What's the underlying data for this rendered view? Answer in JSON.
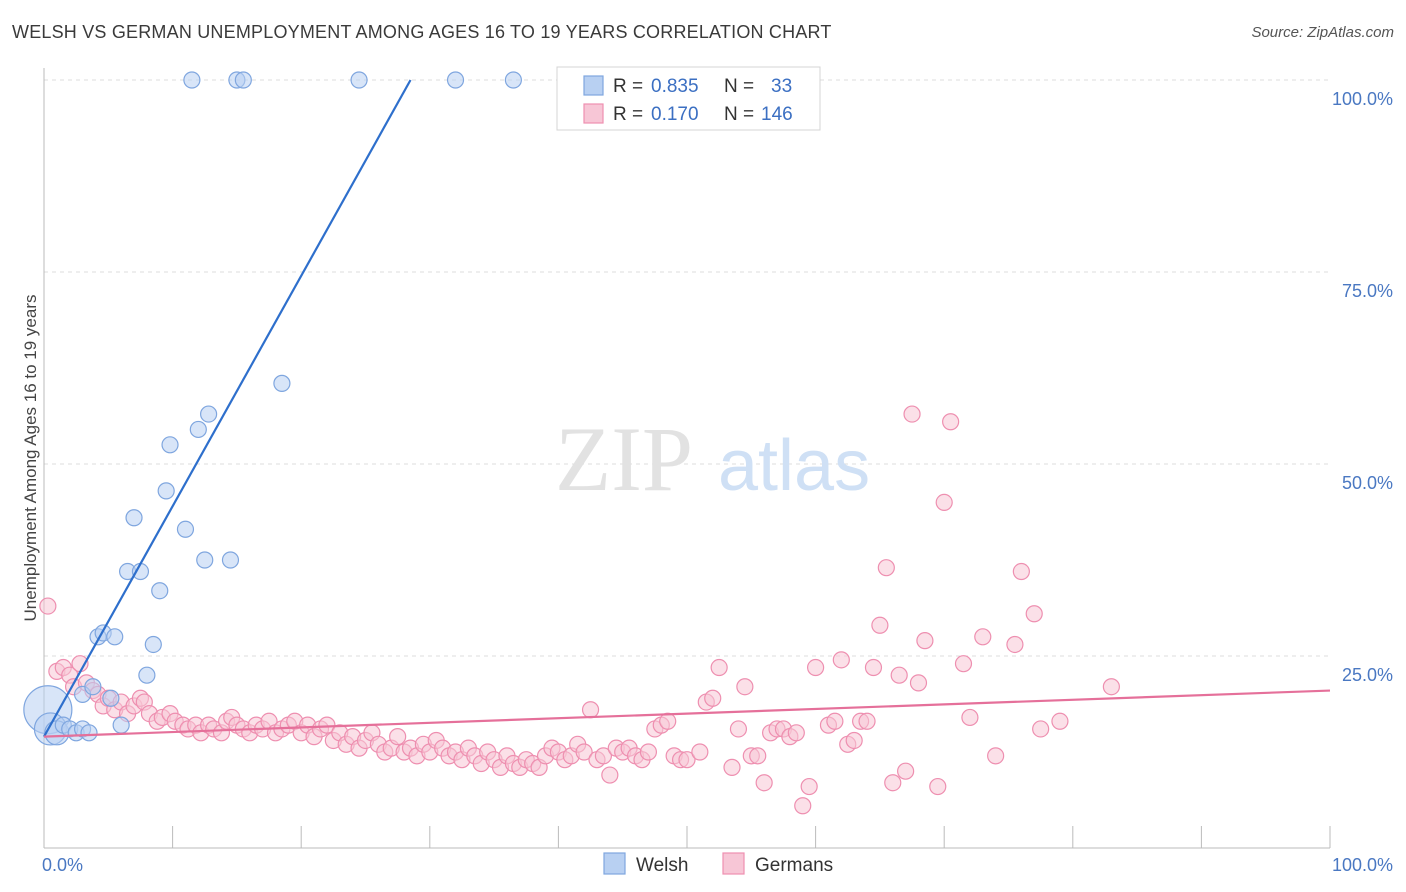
{
  "title": "WELSH VS GERMAN UNEMPLOYMENT AMONG AGES 16 TO 19 YEARS CORRELATION CHART",
  "source": "Source: ZipAtlas.com",
  "watermark": {
    "zip": "ZIP",
    "atlas": "atlas"
  },
  "colors": {
    "welsh_fill": "#b8d0f2",
    "welsh_stroke": "#7fa6df",
    "welsh_line": "#2e6fcc",
    "german_fill": "#f7c6d6",
    "german_stroke": "#ee8fb0",
    "german_line": "#e5709a",
    "tick_text": "#4a78c2",
    "grid": "#dddddd"
  },
  "legend": {
    "welsh": {
      "r_label": "R =",
      "r_value": "0.835",
      "n_label": "N =",
      "n_value": "33"
    },
    "germans": {
      "r_label": "R =",
      "r_value": "0.170",
      "n_label": "N =",
      "n_value": "146"
    }
  },
  "bottom_legend": {
    "welsh": "Welsh",
    "germans": "Germans"
  },
  "chart_data": {
    "type": "scatter",
    "title": "WELSH VS GERMAN UNEMPLOYMENT AMONG AGES 16 TO 19 YEARS CORRELATION CHART",
    "xlabel": "",
    "ylabel": "Unemployment Among Ages 16 to 19 years",
    "xlim": [
      0,
      100
    ],
    "ylim": [
      0,
      100
    ],
    "x_ticks": [
      {
        "value": 0,
        "label": "0.0%"
      },
      {
        "value": 100,
        "label": "100.0%"
      }
    ],
    "y_ticks": [
      {
        "value": 25,
        "label": "25.0%"
      },
      {
        "value": 50,
        "label": "50.0%"
      },
      {
        "value": 75,
        "label": "75.0%"
      },
      {
        "value": 100,
        "label": "100.0%"
      }
    ],
    "grid": true,
    "legend_position": "top-center",
    "series": [
      {
        "name": "Welsh",
        "R": 0.835,
        "N": 33,
        "trendline": {
          "x": [
            0.0,
            28.5
          ],
          "y": [
            14.5,
            100.0
          ]
        },
        "points": [
          [
            0.3,
            18.0,
            3
          ],
          [
            0.5,
            15.5,
            2
          ],
          [
            1.0,
            15.0,
            1.5
          ],
          [
            1.5,
            16.0,
            1
          ],
          [
            2.0,
            15.5,
            1
          ],
          [
            2.5,
            15.0,
            1
          ],
          [
            3.0,
            15.5,
            1
          ],
          [
            3.5,
            15.0,
            1
          ],
          [
            3.0,
            20.0,
            1
          ],
          [
            3.8,
            21.0,
            1
          ],
          [
            4.2,
            27.5,
            1
          ],
          [
            4.6,
            28.0,
            1
          ],
          [
            5.5,
            27.5,
            1
          ],
          [
            5.2,
            19.5,
            1
          ],
          [
            6.0,
            16.0,
            1
          ],
          [
            6.5,
            36.0,
            1
          ],
          [
            7.0,
            43.0,
            1
          ],
          [
            7.5,
            36.0,
            1
          ],
          [
            8.0,
            22.5,
            1
          ],
          [
            8.5,
            26.5,
            1
          ],
          [
            9.0,
            33.5,
            1
          ],
          [
            9.5,
            46.5,
            1
          ],
          [
            9.8,
            52.5,
            1
          ],
          [
            11.0,
            41.5,
            1
          ],
          [
            11.5,
            100.0,
            1
          ],
          [
            12.0,
            54.5,
            1
          ],
          [
            12.5,
            37.5,
            1
          ],
          [
            12.8,
            56.5,
            1
          ],
          [
            14.5,
            37.5,
            1
          ],
          [
            15.0,
            100.0,
            1
          ],
          [
            15.5,
            100.0,
            1
          ],
          [
            18.5,
            60.5,
            1
          ],
          [
            24.5,
            100.0,
            1
          ],
          [
            32.0,
            100.0,
            1
          ],
          [
            36.5,
            100.0,
            1
          ]
        ]
      },
      {
        "name": "Germans",
        "R": 0.17,
        "N": 146,
        "trendline": {
          "x": [
            0.0,
            100.0
          ],
          "y": [
            14.5,
            20.5
          ]
        },
        "points": [
          [
            0.3,
            31.5,
            1
          ],
          [
            1.0,
            23.0,
            1
          ],
          [
            1.5,
            23.5,
            1
          ],
          [
            2.0,
            22.5,
            1
          ],
          [
            2.3,
            21.0,
            1
          ],
          [
            2.8,
            24.0,
            1
          ],
          [
            3.3,
            21.5,
            1
          ],
          [
            3.8,
            20.5,
            1
          ],
          [
            4.2,
            20.0,
            1
          ],
          [
            4.6,
            18.5,
            1
          ],
          [
            5.0,
            19.5,
            1
          ],
          [
            5.5,
            18.0,
            1
          ],
          [
            6.0,
            19.0,
            1
          ],
          [
            6.5,
            17.5,
            1
          ],
          [
            7.0,
            18.5,
            1
          ],
          [
            7.5,
            19.5,
            1
          ],
          [
            7.8,
            19.0,
            1
          ],
          [
            8.2,
            17.5,
            1
          ],
          [
            8.8,
            16.5,
            1
          ],
          [
            9.2,
            17.0,
            1
          ],
          [
            9.8,
            17.5,
            1
          ],
          [
            10.2,
            16.5,
            1
          ],
          [
            10.8,
            16.0,
            1
          ],
          [
            11.2,
            15.5,
            1
          ],
          [
            11.8,
            16.0,
            1
          ],
          [
            12.2,
            15.0,
            1
          ],
          [
            12.8,
            16.0,
            1
          ],
          [
            13.2,
            15.5,
            1
          ],
          [
            13.8,
            15.0,
            1
          ],
          [
            14.2,
            16.5,
            1
          ],
          [
            14.6,
            17.0,
            1
          ],
          [
            15.0,
            16.0,
            1
          ],
          [
            15.5,
            15.5,
            1
          ],
          [
            16.0,
            15.0,
            1
          ],
          [
            16.5,
            16.0,
            1
          ],
          [
            17.0,
            15.5,
            1
          ],
          [
            17.5,
            16.5,
            1
          ],
          [
            18.0,
            15.0,
            1
          ],
          [
            18.5,
            15.5,
            1
          ],
          [
            19.0,
            16.0,
            1
          ],
          [
            19.5,
            16.5,
            1
          ],
          [
            20.0,
            15.0,
            1
          ],
          [
            20.5,
            16.0,
            1
          ],
          [
            21.0,
            14.5,
            1
          ],
          [
            21.5,
            15.5,
            1
          ],
          [
            22.0,
            16.0,
            1
          ],
          [
            22.5,
            14.0,
            1
          ],
          [
            23.0,
            15.0,
            1
          ],
          [
            23.5,
            13.5,
            1
          ],
          [
            24.0,
            14.5,
            1
          ],
          [
            24.5,
            13.0,
            1
          ],
          [
            25.0,
            14.0,
            1
          ],
          [
            25.5,
            15.0,
            1
          ],
          [
            26.0,
            13.5,
            1
          ],
          [
            26.5,
            12.5,
            1
          ],
          [
            27.0,
            13.0,
            1
          ],
          [
            27.5,
            14.5,
            1
          ],
          [
            28.0,
            12.5,
            1
          ],
          [
            28.5,
            13.0,
            1
          ],
          [
            29.0,
            12.0,
            1
          ],
          [
            29.5,
            13.5,
            1
          ],
          [
            30.0,
            12.5,
            1
          ],
          [
            30.5,
            14.0,
            1
          ],
          [
            31.0,
            13.0,
            1
          ],
          [
            31.5,
            12.0,
            1
          ],
          [
            32.0,
            12.5,
            1
          ],
          [
            32.5,
            11.5,
            1
          ],
          [
            33.0,
            13.0,
            1
          ],
          [
            33.5,
            12.0,
            1
          ],
          [
            34.0,
            11.0,
            1
          ],
          [
            34.5,
            12.5,
            1
          ],
          [
            35.0,
            11.5,
            1
          ],
          [
            35.5,
            10.5,
            1
          ],
          [
            36.0,
            12.0,
            1
          ],
          [
            36.5,
            11.0,
            1
          ],
          [
            37.0,
            10.5,
            1
          ],
          [
            37.5,
            11.5,
            1
          ],
          [
            38.0,
            11.0,
            1
          ],
          [
            38.5,
            10.5,
            1
          ],
          [
            39.0,
            12.0,
            1
          ],
          [
            39.5,
            13.0,
            1
          ],
          [
            40.0,
            12.5,
            1
          ],
          [
            40.5,
            11.5,
            1
          ],
          [
            41.0,
            12.0,
            1
          ],
          [
            41.5,
            13.5,
            1
          ],
          [
            42.0,
            12.5,
            1
          ],
          [
            42.5,
            18.0,
            1
          ],
          [
            43.0,
            11.5,
            1
          ],
          [
            43.5,
            12.0,
            1
          ],
          [
            44.0,
            9.5,
            1
          ],
          [
            44.5,
            13.0,
            1
          ],
          [
            45.0,
            12.5,
            1
          ],
          [
            45.5,
            13.0,
            1
          ],
          [
            46.0,
            12.0,
            1
          ],
          [
            46.5,
            11.5,
            1
          ],
          [
            47.0,
            12.5,
            1
          ],
          [
            47.5,
            15.5,
            1
          ],
          [
            48.0,
            16.0,
            1
          ],
          [
            48.5,
            16.5,
            1
          ],
          [
            49.0,
            12.0,
            1
          ],
          [
            49.5,
            11.5,
            1
          ],
          [
            50.0,
            11.5,
            1
          ],
          [
            51.0,
            12.5,
            1
          ],
          [
            51.5,
            19.0,
            1
          ],
          [
            52.0,
            19.5,
            1
          ],
          [
            52.5,
            23.5,
            1
          ],
          [
            53.5,
            10.5,
            1
          ],
          [
            54.0,
            15.5,
            1
          ],
          [
            54.5,
            21.0,
            1
          ],
          [
            55.0,
            12.0,
            1
          ],
          [
            55.5,
            12.0,
            1
          ],
          [
            56.0,
            8.5,
            1
          ],
          [
            56.5,
            15.0,
            1
          ],
          [
            57.0,
            15.5,
            1
          ],
          [
            57.5,
            15.5,
            1
          ],
          [
            58.0,
            14.5,
            1
          ],
          [
            58.5,
            15.0,
            1
          ],
          [
            59.0,
            5.5,
            1
          ],
          [
            59.5,
            8.0,
            1
          ],
          [
            60.0,
            23.5,
            1
          ],
          [
            61.0,
            16.0,
            1
          ],
          [
            61.5,
            16.5,
            1
          ],
          [
            62.0,
            24.5,
            1
          ],
          [
            62.5,
            13.5,
            1
          ],
          [
            63.0,
            14.0,
            1
          ],
          [
            63.5,
            16.5,
            1
          ],
          [
            64.0,
            16.5,
            1
          ],
          [
            64.5,
            23.5,
            1
          ],
          [
            65.0,
            29.0,
            1
          ],
          [
            65.5,
            36.5,
            1
          ],
          [
            66.0,
            8.5,
            1
          ],
          [
            66.5,
            22.5,
            1
          ],
          [
            67.0,
            10.0,
            1
          ],
          [
            67.5,
            56.5,
            1
          ],
          [
            68.0,
            21.5,
            1
          ],
          [
            68.5,
            27.0,
            1
          ],
          [
            69.5,
            8.0,
            1
          ],
          [
            70.0,
            45.0,
            1
          ],
          [
            70.5,
            55.5,
            1
          ],
          [
            71.5,
            24.0,
            1
          ],
          [
            72.0,
            17.0,
            1
          ],
          [
            73.0,
            27.5,
            1
          ],
          [
            74.0,
            12.0,
            1
          ],
          [
            75.5,
            26.5,
            1
          ],
          [
            76.0,
            36.0,
            1
          ],
          [
            77.0,
            30.5,
            1
          ],
          [
            77.5,
            15.5,
            1
          ],
          [
            79.0,
            16.5,
            1
          ],
          [
            83.0,
            21.0,
            1
          ]
        ]
      }
    ]
  }
}
